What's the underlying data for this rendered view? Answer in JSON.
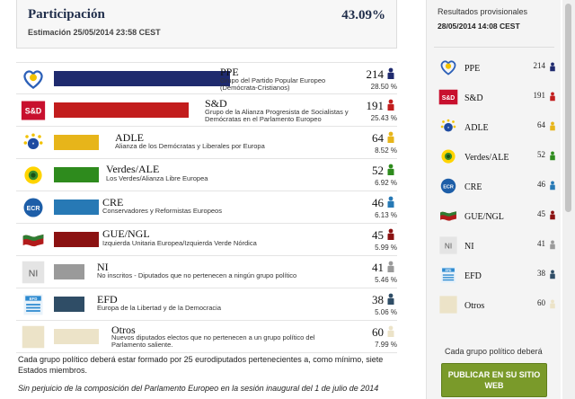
{
  "participation": {
    "title": "Participación",
    "percent": "43.09%",
    "estimate": "Estimación 25/05/2014 23:58 CEST"
  },
  "groups": [
    {
      "abbr": "PPE",
      "desc": "Grupo del Partido Popular Europeo (Demócrata-Cristianos)",
      "seats": "214",
      "percent": "28.50 %",
      "color": "#1f2a6e",
      "icon": "heart-logo-icon"
    },
    {
      "abbr": "S&D",
      "desc": "Grupo de la Alianza Progresista de Socialistas y Demócratas en el Parlamento Europeo",
      "seats": "191",
      "percent": "25.43 %",
      "color": "#c21d1d",
      "icon": "sd-logo-icon",
      "logo_text": "S&D"
    },
    {
      "abbr": "ADLE",
      "desc": "Alianza de los Demócratas y Liberales por Europa",
      "seats": "64",
      "percent": "8.52 %",
      "color": "#e7b51a",
      "icon": "stars-logo-icon"
    },
    {
      "abbr": "Verdes/ALE",
      "desc": "Los Verdes/Alianza Libre Europea",
      "seats": "52",
      "percent": "6.92 %",
      "color": "#2e8b1d",
      "icon": "sunflower-logo-icon"
    },
    {
      "abbr": "CRE",
      "desc": "Conservadores y Reformistas Europeos",
      "seats": "46",
      "percent": "6.13 %",
      "color": "#2779b5",
      "icon": "ecr-logo-icon",
      "logo_text": "ECR"
    },
    {
      "abbr": "GUE/NGL",
      "desc": "Izquierda Unitaria Europea/Izquierda Verde Nórdica",
      "seats": "45",
      "percent": "5.99 %",
      "color": "#8b1212",
      "icon": "flag-logo-icon"
    },
    {
      "abbr": "NI",
      "desc": "No inscritos - Diputados que no pertenecen a ningún grupo político",
      "seats": "41",
      "percent": "5.46 %",
      "color": "#9a9a9a",
      "icon": "ni-logo-icon",
      "logo_text": "NI"
    },
    {
      "abbr": "EFD",
      "desc": "Europa de la Libertad y de la Democracia",
      "seats": "38",
      "percent": "5.06 %",
      "color": "#2f4d66",
      "icon": "efd-logo-icon",
      "logo_text": "EFD"
    },
    {
      "abbr": "Otros",
      "desc": "Nuevos diputados electos que no pertenecen a un grupo político del Parlamento saliente.",
      "seats": "60",
      "percent": "7.99 %",
      "color": "#ece3c8",
      "icon": "others-logo-icon"
    }
  ],
  "footnote": "Cada grupo político deberá estar formado por 25 eurodiputados pertenecientes a, como mínimo, siete Estados miembros.",
  "footnote_italic": "Sin perjuicio de la composición del Parlamento Europeo en la sesión inaugural del 1 de julio de 2014",
  "sidebar": {
    "title": "Resultados provisionales",
    "date": "28/05/2014 14:08 CEST",
    "items": [
      {
        "name": "PPE",
        "seats": "214"
      },
      {
        "name": "S&D",
        "seats": "191"
      },
      {
        "name": "ADLE",
        "seats": "64"
      },
      {
        "name": "Verdes/ALE",
        "seats": "52"
      },
      {
        "name": "CRE",
        "seats": "46"
      },
      {
        "name": "GUE/NGL",
        "seats": "45"
      },
      {
        "name": "NI",
        "seats": "41"
      },
      {
        "name": "EFD",
        "seats": "38"
      },
      {
        "name": "Otros",
        "seats": "60"
      }
    ],
    "note": "Cada grupo político deberá",
    "button_line1": "PUBLICAR EN SU SITIO",
    "button_line2": "WEB"
  }
}
